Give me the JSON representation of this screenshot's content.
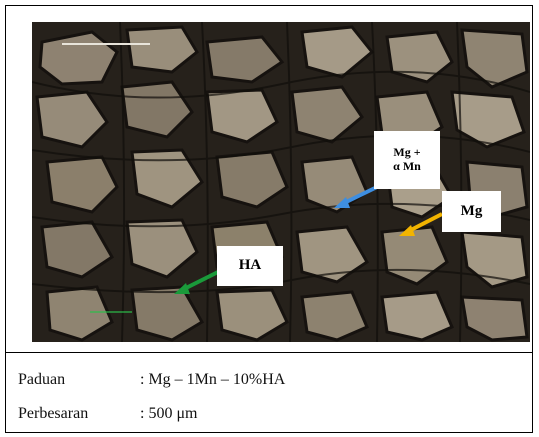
{
  "labels": {
    "ha": "HA",
    "mg": "Mg",
    "mg_mn_line1": "Mg +",
    "mg_mn_line2": "α Mn"
  },
  "caption": {
    "alloy_label": "Paduan",
    "alloy_value": ": Mg – 1Mn – 10%HA",
    "magnification_label": "Perbesaran",
    "magnification_value": ": 500 μm"
  },
  "colors": {
    "arrow_ha": "#1a9a3a",
    "arrow_mg": "#f2b400",
    "arrow_mg_mn": "#3e8ee0"
  }
}
